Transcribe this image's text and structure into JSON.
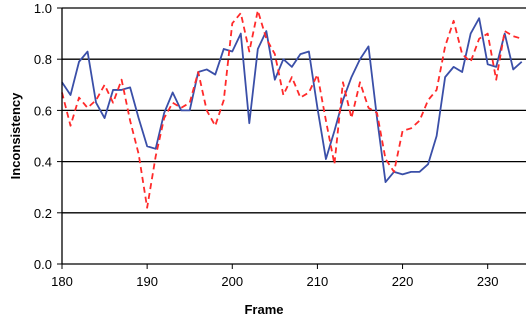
{
  "chart_data": {
    "type": "line",
    "title": "",
    "xlabel": "Frame",
    "ylabel": "Inconsistency",
    "xlim": [
      180,
      234.5
    ],
    "ylim": [
      0.0,
      1.0
    ],
    "xticks": [
      180,
      190,
      200,
      210,
      220,
      230
    ],
    "yticks": [
      0.0,
      0.2,
      0.4,
      0.6,
      0.8,
      1.0
    ],
    "xtick_labels": [
      "180",
      "190",
      "200",
      "210",
      "220",
      "230"
    ],
    "ytick_labels": [
      "0.0",
      "0.2",
      "0.4",
      "0.6",
      "0.8",
      "1.0"
    ],
    "grid": "horizontal",
    "legend": "none",
    "series": [
      {
        "color": "#3a4fa8",
        "style": "solid",
        "x": [
          180,
          181,
          182,
          183,
          184,
          185,
          186,
          187,
          188,
          189,
          190,
          191,
          192,
          193,
          194,
          195,
          196,
          197,
          198,
          199,
          200,
          201,
          202,
          203,
          204,
          205,
          206,
          207,
          208,
          209,
          210,
          211,
          212,
          213,
          214,
          215,
          216,
          217,
          218,
          219,
          220,
          221,
          222,
          223,
          224,
          225,
          226,
          227,
          228,
          229,
          230,
          231,
          232,
          233,
          234
        ],
        "y": [
          0.71,
          0.66,
          0.79,
          0.83,
          0.63,
          0.57,
          0.68,
          0.68,
          0.69,
          0.57,
          0.46,
          0.45,
          0.59,
          0.67,
          0.6,
          0.6,
          0.75,
          0.76,
          0.74,
          0.84,
          0.83,
          0.9,
          0.55,
          0.84,
          0.91,
          0.72,
          0.8,
          0.77,
          0.82,
          0.83,
          0.61,
          0.41,
          0.52,
          0.64,
          0.73,
          0.8,
          0.85,
          0.57,
          0.32,
          0.36,
          0.35,
          0.36,
          0.36,
          0.39,
          0.5,
          0.73,
          0.77,
          0.75,
          0.9,
          0.96,
          0.78,
          0.77,
          0.9,
          0.76,
          0.79
        ]
      },
      {
        "color": "#ff2a2a",
        "style": "dashed",
        "x": [
          180,
          181,
          182,
          183,
          184,
          185,
          186,
          187,
          188,
          189,
          190,
          191,
          192,
          193,
          194,
          195,
          196,
          197,
          198,
          199,
          200,
          201,
          202,
          203,
          204,
          205,
          206,
          207,
          208,
          209,
          210,
          211,
          212,
          213,
          214,
          215,
          216,
          217,
          218,
          219,
          220,
          221,
          222,
          223,
          224,
          225,
          226,
          227,
          228,
          229,
          230,
          231,
          232,
          233,
          234
        ],
        "y": [
          0.67,
          0.54,
          0.65,
          0.61,
          0.64,
          0.7,
          0.63,
          0.72,
          0.56,
          0.43,
          0.22,
          0.42,
          0.57,
          0.63,
          0.61,
          0.63,
          0.75,
          0.6,
          0.54,
          0.64,
          0.94,
          0.98,
          0.83,
          0.99,
          0.88,
          0.82,
          0.66,
          0.73,
          0.65,
          0.67,
          0.74,
          0.56,
          0.39,
          0.71,
          0.57,
          0.71,
          0.61,
          0.59,
          0.41,
          0.36,
          0.52,
          0.53,
          0.56,
          0.64,
          0.68,
          0.85,
          0.95,
          0.82,
          0.79,
          0.88,
          0.9,
          0.72,
          0.91,
          0.89,
          0.88
        ]
      }
    ]
  }
}
